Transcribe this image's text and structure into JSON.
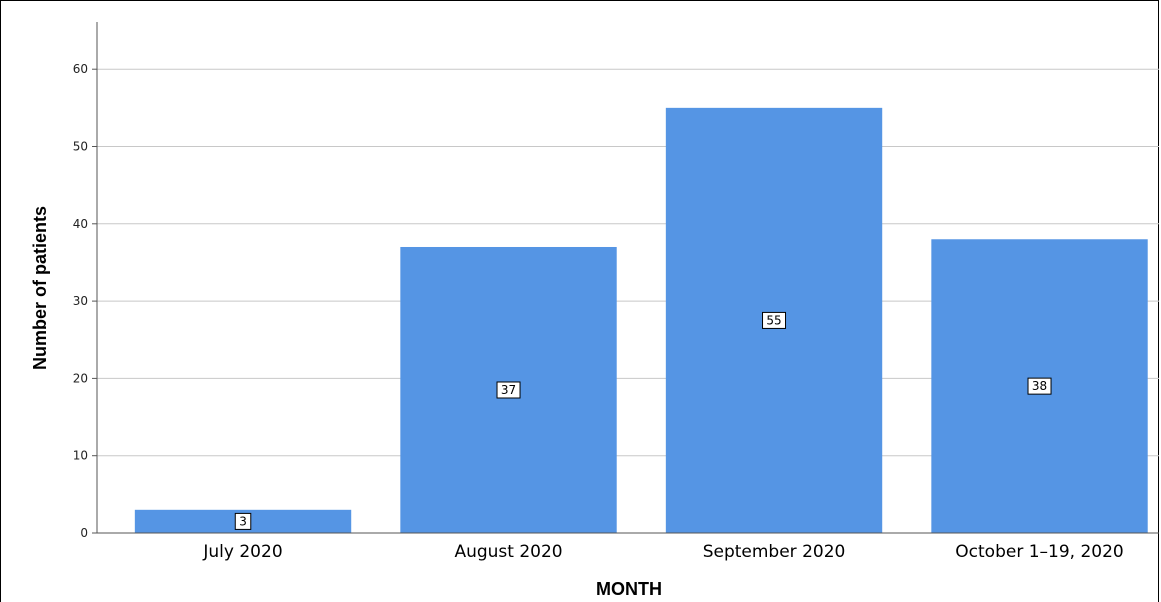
{
  "chart_data": {
    "type": "bar",
    "categories": [
      "July 2020",
      "August 2020",
      "September 2020",
      "October 1–19, 2020"
    ],
    "values": [
      3,
      37,
      55,
      38
    ],
    "data_labels": [
      "3",
      "37",
      "55",
      "38"
    ],
    "title": "",
    "xlabel": "MONTH",
    "ylabel": "Number of patients",
    "ylim": [
      0,
      63
    ],
    "yticks": [
      0,
      10,
      20,
      30,
      40,
      50,
      60
    ],
    "grid": true,
    "bar_color": "#5595e4"
  }
}
